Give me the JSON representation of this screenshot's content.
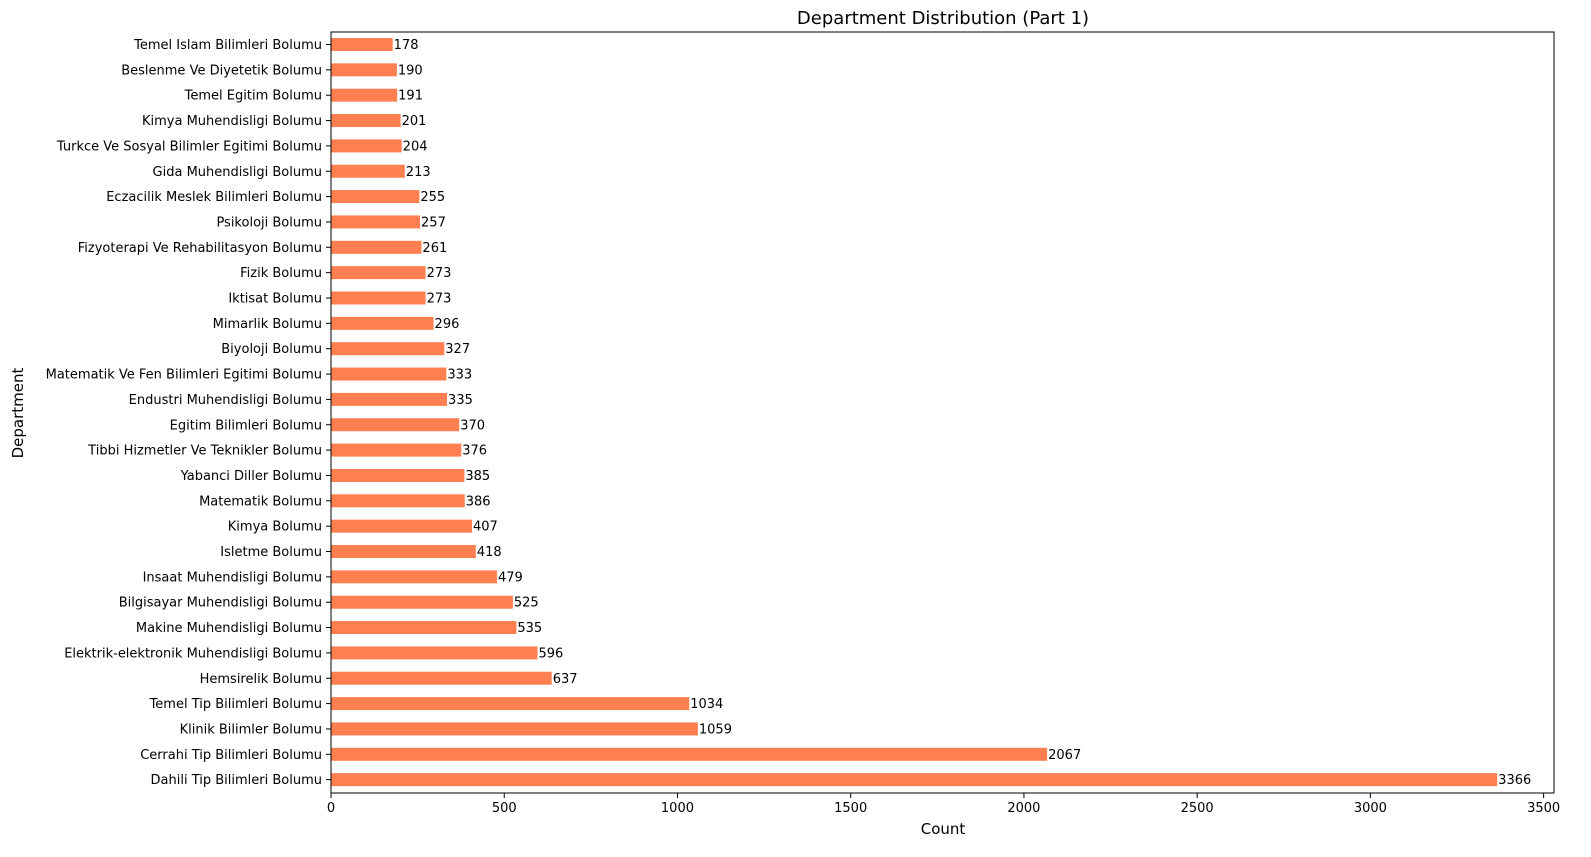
{
  "chart_data": {
    "type": "bar",
    "orientation": "horizontal",
    "title": "Department Distribution (Part 1)",
    "xlabel": "Count",
    "ylabel": "Department",
    "xlim": [
      0,
      3530
    ],
    "xticks": [
      0,
      500,
      1000,
      1500,
      2000,
      2500,
      3000,
      3500
    ],
    "grid": false,
    "bar_color": "#ff7f50",
    "categories": [
      "Temel Islam Bilimleri Bolumu",
      "Beslenme Ve Diyetetik Bolumu",
      "Temel Egitim Bolumu",
      "Kimya Muhendisligi Bolumu",
      "Turkce Ve Sosyal Bilimler Egitimi Bolumu",
      "Gida Muhendisligi Bolumu",
      "Eczacilik Meslek Bilimleri Bolumu",
      "Psikoloji Bolumu",
      "Fizyoterapi Ve Rehabilitasyon Bolumu",
      "Fizik Bolumu",
      "Iktisat Bolumu",
      "Mimarlik Bolumu",
      "Biyoloji Bolumu",
      "Matematik Ve Fen Bilimleri Egitimi Bolumu",
      "Endustri Muhendisligi Bolumu",
      "Egitim Bilimleri Bolumu",
      "Tibbi Hizmetler Ve Teknikler Bolumu",
      "Yabanci Diller Bolumu",
      "Matematik Bolumu",
      "Kimya Bolumu",
      "Isletme Bolumu",
      "Insaat Muhendisligi Bolumu",
      "Bilgisayar Muhendisligi Bolumu",
      "Makine Muhendisligi Bolumu",
      "Elektrik-elektronik Muhendisligi Bolumu",
      "Hemsirelik Bolumu",
      "Temel Tip Bilimleri Bolumu",
      "Klinik Bilimler Bolumu",
      "Cerrahi Tip Bilimleri Bolumu",
      "Dahili Tip Bilimleri Bolumu"
    ],
    "values": [
      178,
      190,
      191,
      201,
      204,
      213,
      255,
      257,
      261,
      273,
      273,
      296,
      327,
      333,
      335,
      370,
      376,
      385,
      386,
      407,
      418,
      479,
      525,
      535,
      596,
      637,
      1034,
      1059,
      2067,
      3366
    ]
  }
}
